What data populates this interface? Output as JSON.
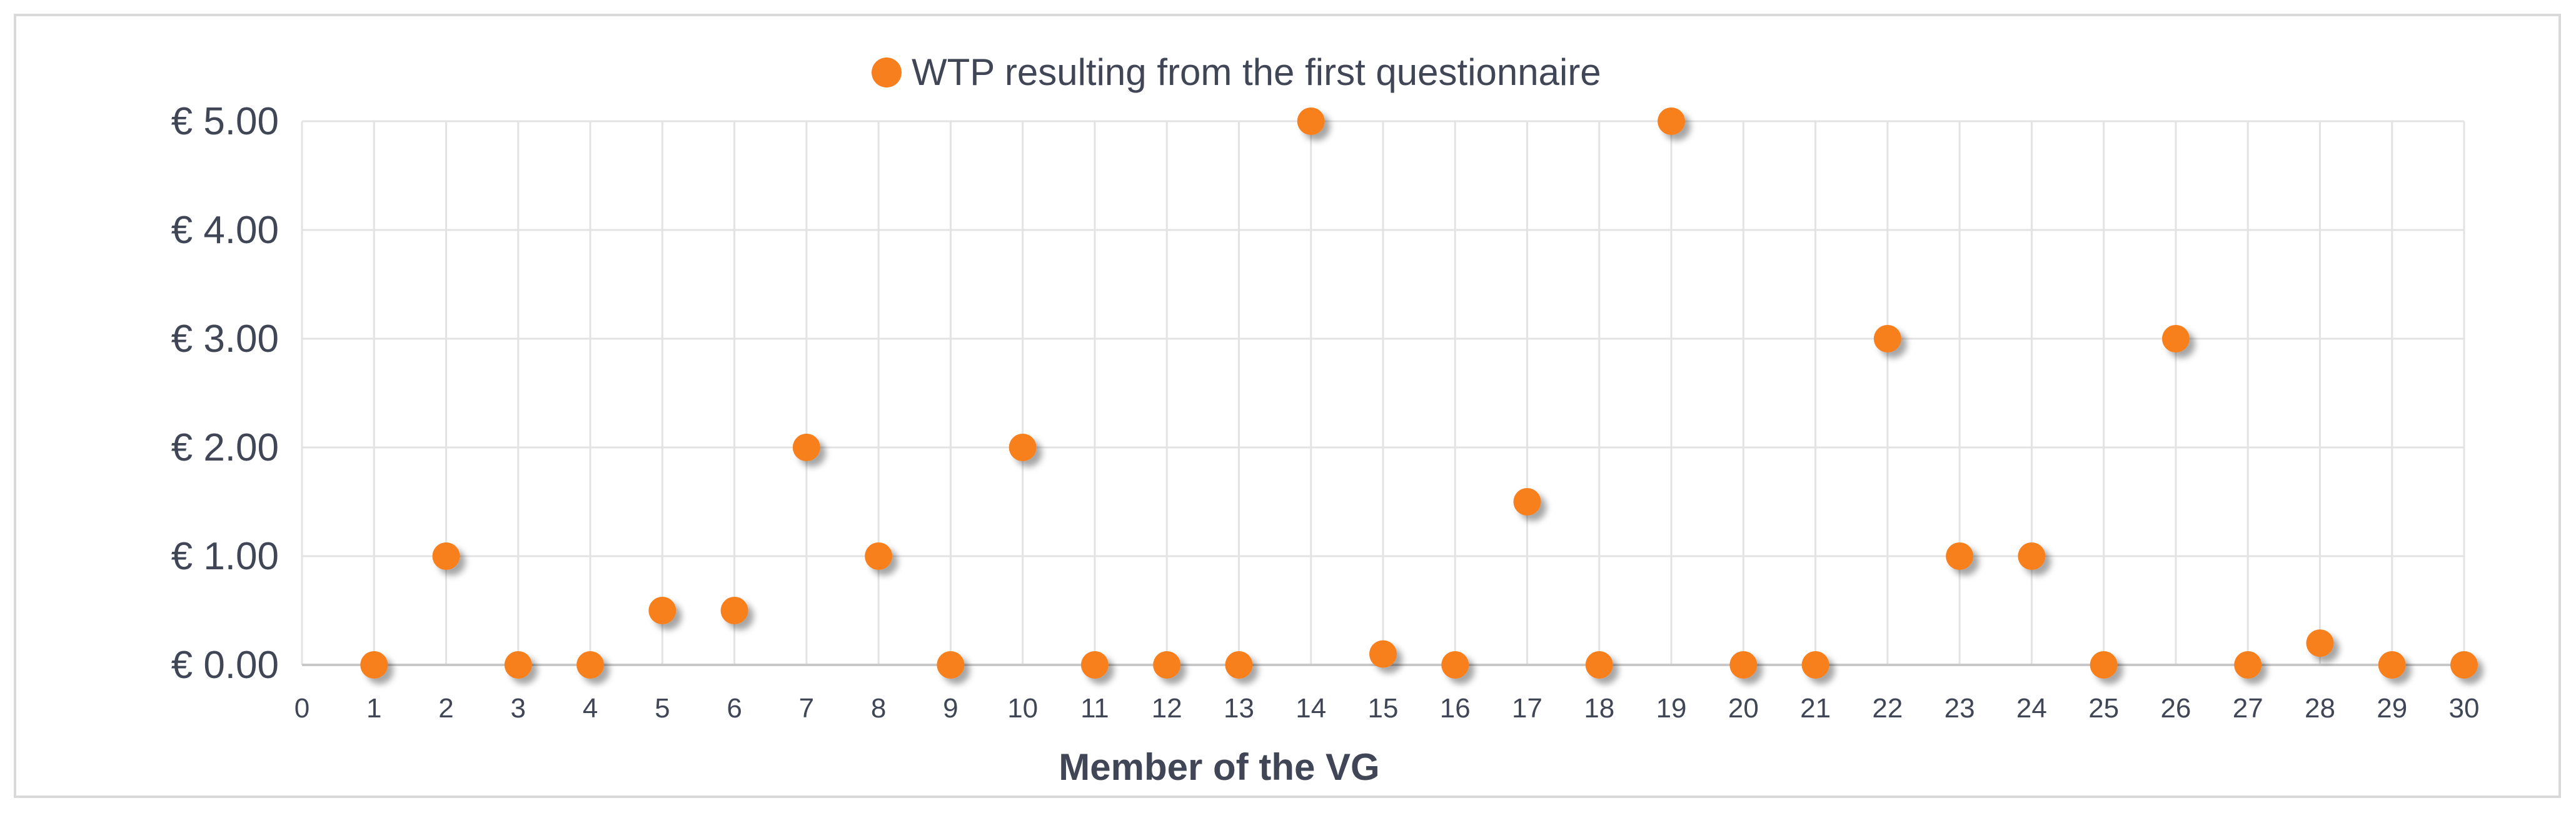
{
  "chart_data": {
    "type": "scatter",
    "title": "",
    "xlabel": "Member of the VG",
    "ylabel": "",
    "xlim": [
      0,
      30
    ],
    "ylim": [
      0,
      5
    ],
    "x_ticks": [
      "0",
      "1",
      "2",
      "3",
      "4",
      "5",
      "6",
      "7",
      "8",
      "9",
      "10",
      "11",
      "12",
      "13",
      "14",
      "15",
      "16",
      "17",
      "18",
      "19",
      "20",
      "21",
      "22",
      "23",
      "24",
      "25",
      "26",
      "27",
      "28",
      "29",
      "30"
    ],
    "y_ticks": [
      "€ 0.00",
      "€ 1.00",
      "€ 2.00",
      "€ 3.00",
      "€ 4.00",
      "€ 5.00"
    ],
    "grid": true,
    "legend_position": "top-center",
    "series": [
      {
        "name": "WTP resulting from the first questionnaire",
        "color": "#f77f1e",
        "x": [
          1,
          2,
          3,
          4,
          5,
          6,
          7,
          8,
          9,
          10,
          11,
          12,
          13,
          14,
          15,
          16,
          17,
          18,
          19,
          20,
          21,
          22,
          23,
          24,
          25,
          26,
          27,
          28,
          29,
          30
        ],
        "values": [
          0,
          1,
          0,
          0,
          0.5,
          0.5,
          2,
          1,
          0,
          2,
          0,
          0,
          0,
          5,
          0.1,
          0,
          1.5,
          0,
          5,
          0,
          0,
          3,
          1,
          1,
          0,
          3,
          0,
          0.2,
          0,
          0
        ]
      }
    ]
  }
}
